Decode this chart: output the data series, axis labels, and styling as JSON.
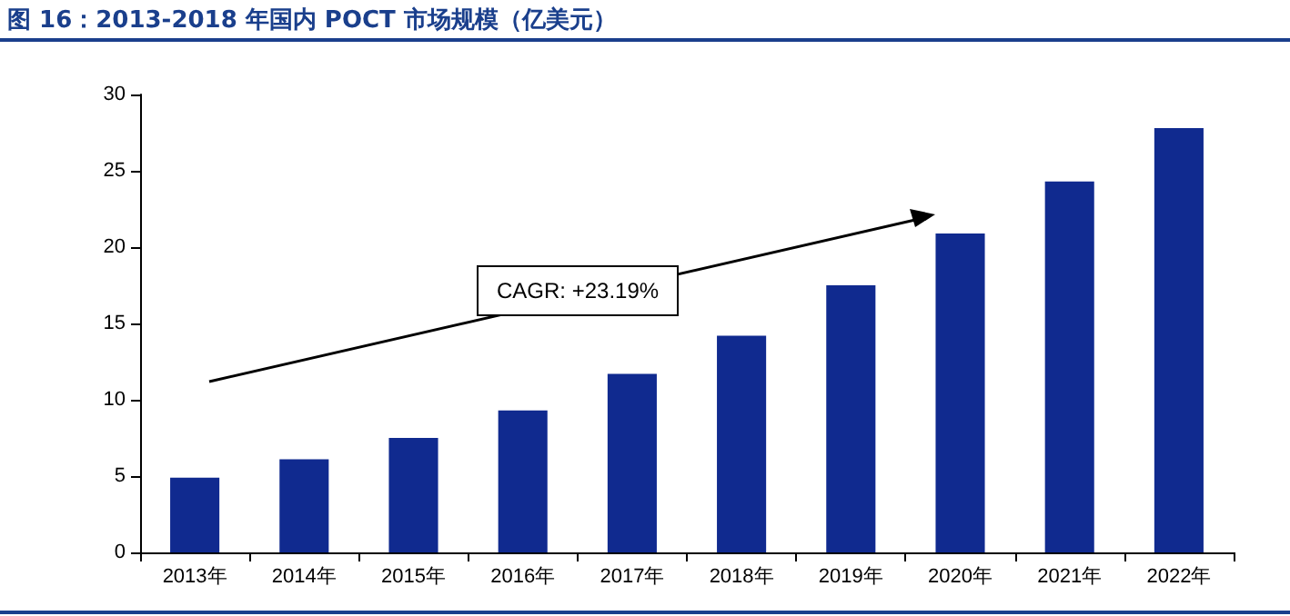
{
  "chart_data": {
    "type": "bar",
    "title": "图 16：2013-2018 年国内 POCT 市场规模（亿美元）",
    "categories": [
      "2013年",
      "2014年",
      "2015年",
      "2016年",
      "2017年",
      "2018年",
      "2019年",
      "2020年",
      "2021年",
      "2022年"
    ],
    "values": [
      4.9,
      6.1,
      7.5,
      9.3,
      11.7,
      14.2,
      17.5,
      20.9,
      24.3,
      27.8
    ],
    "color": "#102a8f",
    "ylim": [
      0,
      30
    ],
    "yticks": [
      0,
      5,
      10,
      15,
      20,
      25,
      30
    ],
    "grid": false,
    "annotations": [
      "CAGR: +23.19%"
    ]
  }
}
